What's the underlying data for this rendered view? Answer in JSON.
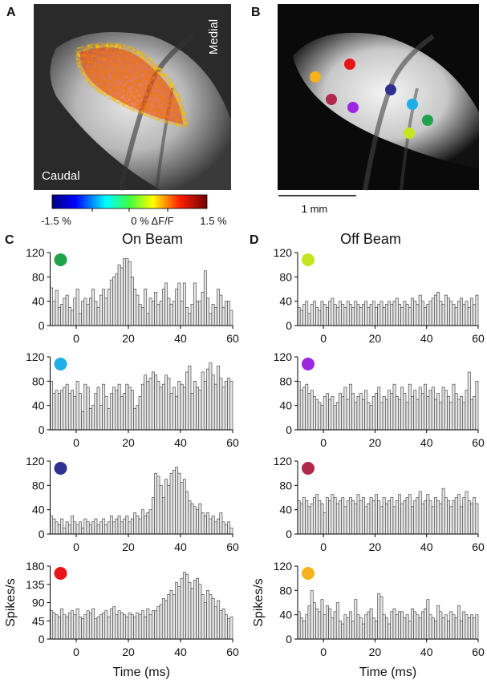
{
  "figure": {
    "panel_labels": [
      "A",
      "B",
      "C",
      "D"
    ],
    "image_a": {
      "medial": "Medial",
      "caudal": "Caudal"
    },
    "colorbar_labels": [
      "-1.5 %",
      "0 % ΔF/F",
      "1.5 %"
    ],
    "scale_bar": "1 mm",
    "column_titles": [
      "On Beam",
      "Off Beam"
    ]
  },
  "chart_data": [
    {
      "type": "histogram",
      "marker_color": "#1fa34a",
      "color": "#e6e6e6",
      "bins": [
        -10,
        -9,
        -8,
        -7,
        -6,
        -5,
        -4,
        -3,
        -2,
        -1,
        0,
        1,
        2,
        3,
        4,
        5,
        6,
        7,
        8,
        9,
        10,
        11,
        12,
        13,
        14,
        15,
        16,
        17,
        18,
        19,
        20,
        21,
        22,
        23,
        24,
        25,
        26,
        27,
        28,
        29,
        30,
        31,
        32,
        33,
        34,
        35,
        36,
        37,
        38,
        39,
        40,
        41,
        42,
        43,
        44,
        45,
        46,
        47,
        48,
        49,
        50,
        51,
        52,
        53,
        54,
        55,
        56,
        57,
        58,
        59,
        60
      ],
      "values": [
        62,
        40,
        58,
        30,
        35,
        45,
        50,
        30,
        25,
        45,
        60,
        20,
        40,
        45,
        35,
        45,
        60,
        40,
        30,
        50,
        60,
        45,
        60,
        75,
        80,
        85,
        100,
        95,
        110,
        110,
        105,
        80,
        60,
        50,
        35,
        30,
        60,
        20,
        45,
        40,
        55,
        35,
        40,
        60,
        70,
        45,
        35,
        40,
        60,
        70,
        40,
        70,
        30,
        20,
        35,
        70,
        40,
        40,
        55,
        90,
        45,
        20,
        35,
        30,
        60,
        50,
        30,
        40,
        40,
        25
      ],
      "xlim": [
        -10,
        60
      ],
      "xticks": [
        0,
        20,
        40,
        60
      ],
      "ylim": [
        0,
        120
      ],
      "yticks": [
        0,
        40,
        80,
        120
      ]
    },
    {
      "type": "histogram",
      "marker_color": "#1eaee8",
      "color": "#e6e6e6",
      "bins": [
        -10,
        -9,
        -8,
        -7,
        -6,
        -5,
        -4,
        -3,
        -2,
        -1,
        0,
        1,
        2,
        3,
        4,
        5,
        6,
        7,
        8,
        9,
        10,
        11,
        12,
        13,
        14,
        15,
        16,
        17,
        18,
        19,
        20,
        21,
        22,
        23,
        24,
        25,
        26,
        27,
        28,
        29,
        30,
        31,
        32,
        33,
        34,
        35,
        36,
        37,
        38,
        39,
        40,
        41,
        42,
        43,
        44,
        45,
        46,
        47,
        48,
        49,
        50,
        51,
        52,
        53,
        54,
        55,
        56,
        57,
        58,
        59,
        60
      ],
      "values": [
        80,
        60,
        65,
        60,
        65,
        70,
        75,
        60,
        65,
        55,
        80,
        60,
        30,
        75,
        70,
        35,
        40,
        60,
        70,
        40,
        75,
        55,
        35,
        60,
        70,
        65,
        75,
        55,
        60,
        75,
        70,
        65,
        35,
        40,
        55,
        75,
        90,
        80,
        85,
        95,
        90,
        80,
        70,
        75,
        90,
        85,
        60,
        70,
        55,
        80,
        75,
        70,
        95,
        105,
        60,
        80,
        70,
        65,
        95,
        80,
        100,
        110,
        90,
        75,
        105,
        85,
        70,
        80,
        85,
        80
      ],
      "xlim": [
        -10,
        60
      ],
      "xticks": [
        0,
        20,
        40,
        60
      ],
      "ylim": [
        0,
        120
      ],
      "yticks": [
        0,
        40,
        80,
        120
      ]
    },
    {
      "type": "histogram",
      "marker_color": "#2e3192",
      "color": "#e6e6e6",
      "bins": [
        -10,
        -9,
        -8,
        -7,
        -6,
        -5,
        -4,
        -3,
        -2,
        -1,
        0,
        1,
        2,
        3,
        4,
        5,
        6,
        7,
        8,
        9,
        10,
        11,
        12,
        13,
        14,
        15,
        16,
        17,
        18,
        19,
        20,
        21,
        22,
        23,
        24,
        25,
        26,
        27,
        28,
        29,
        30,
        31,
        32,
        33,
        34,
        35,
        36,
        37,
        38,
        39,
        40,
        41,
        42,
        43,
        44,
        45,
        46,
        47,
        48,
        49,
        50,
        51,
        52,
        53,
        54,
        55,
        56,
        57,
        58,
        59,
        60
      ],
      "values": [
        30,
        25,
        20,
        15,
        25,
        10,
        20,
        15,
        30,
        20,
        15,
        20,
        10,
        25,
        20,
        15,
        20,
        25,
        15,
        20,
        25,
        15,
        20,
        30,
        20,
        25,
        30,
        20,
        25,
        30,
        20,
        25,
        35,
        30,
        25,
        40,
        30,
        35,
        40,
        60,
        100,
        95,
        80,
        60,
        90,
        80,
        100,
        105,
        110,
        100,
        85,
        90,
        70,
        55,
        50,
        45,
        40,
        50,
        35,
        30,
        35,
        25,
        30,
        20,
        25,
        35,
        20,
        15,
        20,
        10
      ],
      "xlim": [
        -10,
        60
      ],
      "xticks": [
        0,
        20,
        40,
        60
      ],
      "ylim": [
        0,
        120
      ],
      "yticks": [
        0,
        40,
        80,
        120
      ]
    },
    {
      "type": "histogram",
      "marker_color": "#e8141a",
      "color": "#e6e6e6",
      "bins": [
        -10,
        -9,
        -8,
        -7,
        -6,
        -5,
        -4,
        -3,
        -2,
        -1,
        0,
        1,
        2,
        3,
        4,
        5,
        6,
        7,
        8,
        9,
        10,
        11,
        12,
        13,
        14,
        15,
        16,
        17,
        18,
        19,
        20,
        21,
        22,
        23,
        24,
        25,
        26,
        27,
        28,
        29,
        30,
        31,
        32,
        33,
        34,
        35,
        36,
        37,
        38,
        39,
        40,
        41,
        42,
        43,
        44,
        45,
        46,
        47,
        48,
        49,
        50,
        51,
        52,
        53,
        54,
        55,
        56,
        57,
        58,
        59,
        60
      ],
      "values": [
        70,
        65,
        60,
        55,
        75,
        60,
        55,
        65,
        70,
        60,
        75,
        55,
        50,
        60,
        70,
        65,
        75,
        50,
        55,
        60,
        65,
        70,
        55,
        75,
        80,
        60,
        70,
        65,
        60,
        55,
        65,
        60,
        55,
        65,
        60,
        70,
        55,
        75,
        60,
        70,
        70,
        80,
        85,
        100,
        95,
        110,
        120,
        110,
        140,
        130,
        150,
        165,
        160,
        140,
        125,
        145,
        150,
        135,
        110,
        90,
        120,
        110,
        100,
        80,
        95,
        70,
        75,
        60,
        50,
        55
      ],
      "xlim": [
        -10,
        60
      ],
      "xticks": [
        0,
        20,
        40,
        60
      ],
      "ylim": [
        0,
        180
      ],
      "yticks": [
        0,
        45,
        90,
        135,
        180
      ],
      "y_label": "Spikes/s",
      "x_label": "Time (ms)"
    },
    {
      "type": "histogram",
      "marker_color": "#c5e61f",
      "color": "#e6e6e6",
      "bins": [
        -10,
        -9,
        -8,
        -7,
        -6,
        -5,
        -4,
        -3,
        -2,
        -1,
        0,
        1,
        2,
        3,
        4,
        5,
        6,
        7,
        8,
        9,
        10,
        11,
        12,
        13,
        14,
        15,
        16,
        17,
        18,
        19,
        20,
        21,
        22,
        23,
        24,
        25,
        26,
        27,
        28,
        29,
        30,
        31,
        32,
        33,
        34,
        35,
        36,
        37,
        38,
        39,
        40,
        41,
        42,
        43,
        44,
        45,
        46,
        47,
        48,
        49,
        50,
        51,
        52,
        53,
        54,
        55,
        56,
        57,
        58,
        59,
        60
      ],
      "values": [
        30,
        25,
        35,
        40,
        20,
        35,
        40,
        30,
        25,
        40,
        35,
        30,
        40,
        45,
        35,
        30,
        40,
        35,
        30,
        40,
        35,
        30,
        40,
        35,
        30,
        35,
        40,
        30,
        35,
        40,
        30,
        35,
        40,
        30,
        35,
        40,
        35,
        40,
        45,
        35,
        30,
        40,
        35,
        30,
        45,
        40,
        35,
        50,
        40,
        30,
        35,
        40,
        45,
        50,
        55,
        40,
        35,
        50,
        45,
        40,
        35,
        30,
        40,
        45,
        35,
        40,
        30,
        45,
        35,
        50
      ],
      "xlim": [
        -10,
        60
      ],
      "xticks": [
        0,
        20,
        40,
        60
      ],
      "ylim": [
        0,
        120
      ],
      "yticks": [
        0,
        40,
        80,
        120
      ]
    },
    {
      "type": "histogram",
      "marker_color": "#9b27e0",
      "color": "#e6e6e6",
      "bins": [
        -10,
        -9,
        -8,
        -7,
        -6,
        -5,
        -4,
        -3,
        -2,
        -1,
        0,
        1,
        2,
        3,
        4,
        5,
        6,
        7,
        8,
        9,
        10,
        11,
        12,
        13,
        14,
        15,
        16,
        17,
        18,
        19,
        20,
        21,
        22,
        23,
        24,
        25,
        26,
        27,
        28,
        29,
        30,
        31,
        32,
        33,
        34,
        35,
        36,
        37,
        38,
        39,
        40,
        41,
        42,
        43,
        44,
        45,
        46,
        47,
        48,
        49,
        50,
        51,
        52,
        53,
        54,
        55,
        56,
        57,
        58,
        59,
        60
      ],
      "values": [
        80,
        65,
        70,
        75,
        60,
        65,
        55,
        50,
        45,
        40,
        55,
        60,
        50,
        55,
        40,
        45,
        60,
        55,
        70,
        50,
        75,
        60,
        45,
        55,
        60,
        50,
        65,
        45,
        40,
        55,
        60,
        70,
        45,
        55,
        50,
        65,
        60,
        75,
        55,
        50,
        70,
        60,
        45,
        75,
        55,
        65,
        50,
        70,
        60,
        75,
        55,
        65,
        70,
        50,
        60,
        45,
        70,
        65,
        55,
        45,
        75,
        60,
        50,
        55,
        45,
        65,
        95,
        50,
        55,
        80
      ],
      "xlim": [
        -10,
        60
      ],
      "xticks": [
        0,
        20,
        40,
        60
      ],
      "ylim": [
        0,
        120
      ],
      "yticks": [
        0,
        40,
        80,
        120
      ]
    },
    {
      "type": "histogram",
      "marker_color": "#b0294a",
      "color": "#e6e6e6",
      "bins": [
        -10,
        -9,
        -8,
        -7,
        -6,
        -5,
        -4,
        -3,
        -2,
        -1,
        0,
        1,
        2,
        3,
        4,
        5,
        6,
        7,
        8,
        9,
        10,
        11,
        12,
        13,
        14,
        15,
        16,
        17,
        18,
        19,
        20,
        21,
        22,
        23,
        24,
        25,
        26,
        27,
        28,
        29,
        30,
        31,
        32,
        33,
        34,
        35,
        36,
        37,
        38,
        39,
        40,
        41,
        42,
        43,
        44,
        45,
        46,
        47,
        48,
        49,
        50,
        51,
        52,
        53,
        54,
        55,
        56,
        57,
        58,
        59,
        60
      ],
      "values": [
        55,
        50,
        60,
        55,
        45,
        50,
        60,
        65,
        55,
        50,
        35,
        60,
        55,
        65,
        60,
        50,
        55,
        60,
        45,
        55,
        60,
        55,
        50,
        65,
        55,
        60,
        45,
        50,
        60,
        55,
        65,
        55,
        45,
        60,
        50,
        55,
        60,
        45,
        55,
        65,
        50,
        55,
        60,
        65,
        45,
        55,
        60,
        70,
        50,
        55,
        65,
        55,
        45,
        60,
        55,
        50,
        75,
        60,
        55,
        45,
        55,
        60,
        65,
        45,
        60,
        70,
        55,
        50,
        60,
        50
      ],
      "xlim": [
        -10,
        60
      ],
      "xticks": [
        0,
        20,
        40,
        60
      ],
      "ylim": [
        0,
        120
      ],
      "yticks": [
        0,
        40,
        80,
        120
      ]
    },
    {
      "type": "histogram",
      "marker_color": "#f5b21b",
      "color": "#e6e6e6",
      "bins": [
        -10,
        -9,
        -8,
        -7,
        -6,
        -5,
        -4,
        -3,
        -2,
        -1,
        0,
        1,
        2,
        3,
        4,
        5,
        6,
        7,
        8,
        9,
        10,
        11,
        12,
        13,
        14,
        15,
        16,
        17,
        18,
        19,
        20,
        21,
        22,
        23,
        24,
        25,
        26,
        27,
        28,
        29,
        30,
        31,
        32,
        33,
        34,
        35,
        36,
        37,
        38,
        39,
        40,
        41,
        42,
        43,
        44,
        45,
        46,
        47,
        48,
        49,
        50,
        51,
        52,
        53,
        54,
        55,
        56,
        57,
        58,
        59,
        60
      ],
      "values": [
        45,
        35,
        30,
        40,
        55,
        80,
        60,
        50,
        45,
        65,
        40,
        55,
        50,
        35,
        45,
        60,
        30,
        25,
        40,
        35,
        45,
        30,
        65,
        40,
        35,
        25,
        40,
        45,
        50,
        35,
        30,
        75,
        70,
        40,
        35,
        25,
        45,
        50,
        40,
        45,
        45,
        35,
        40,
        30,
        50,
        45,
        40,
        35,
        45,
        50,
        65,
        40,
        35,
        30,
        55,
        45,
        35,
        40,
        30,
        45,
        40,
        35,
        55,
        30,
        45,
        40,
        35,
        40,
        35,
        40
      ],
      "xlim": [
        -10,
        60
      ],
      "xticks": [
        0,
        20,
        40,
        60
      ],
      "ylim": [
        0,
        120
      ],
      "yticks": [
        0,
        40,
        80,
        120
      ],
      "y_label": "Spikes/s",
      "x_label": "Time (ms)"
    }
  ]
}
